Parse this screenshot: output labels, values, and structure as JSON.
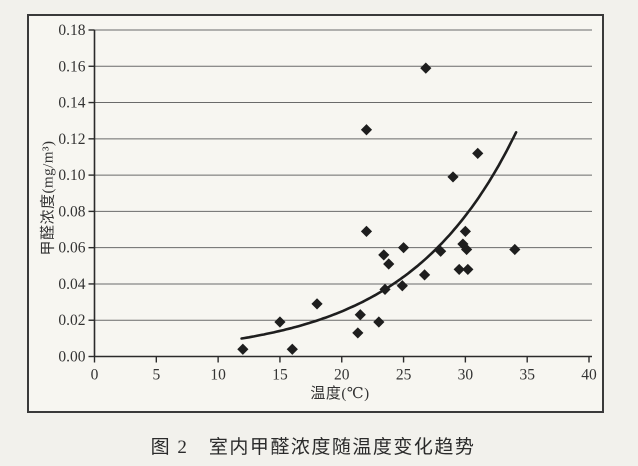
{
  "page": {
    "background": "#f2f1ec",
    "paper": "#f7f6f1",
    "frame_color": "#3a3a3a"
  },
  "figure": {
    "caption": "图 2　室内甲醛浓度随温度变化趋势"
  },
  "chart_data": {
    "type": "scatter",
    "title": "",
    "xlabel": "温度(℃)",
    "ylabel": "甲醛浓度(mg/m³)",
    "xlim": [
      0,
      40
    ],
    "ylim": [
      0,
      0.18
    ],
    "x_ticks": [
      "0",
      "5",
      "10",
      "15",
      "20",
      "25",
      "30",
      "35",
      "40"
    ],
    "y_ticks": [
      "0.00",
      "0.02",
      "0.04",
      "0.06",
      "0.08",
      "0.10",
      "0.12",
      "0.14",
      "0.16",
      "0.18"
    ],
    "grid": "horizontal-only",
    "legend": "none",
    "marker": "diamond",
    "points": [
      [
        12,
        0.004
      ],
      [
        15,
        0.019
      ],
      [
        16,
        0.004
      ],
      [
        18,
        0.029
      ],
      [
        21.3,
        0.013
      ],
      [
        21.5,
        0.023
      ],
      [
        22,
        0.069
      ],
      [
        22,
        0.125
      ],
      [
        23,
        0.019
      ],
      [
        23.4,
        0.056
      ],
      [
        23.5,
        0.037
      ],
      [
        23.8,
        0.051
      ],
      [
        24.9,
        0.039
      ],
      [
        25,
        0.06
      ],
      [
        26.7,
        0.045
      ],
      [
        26.8,
        0.159
      ],
      [
        28,
        0.058
      ],
      [
        29,
        0.099
      ],
      [
        29.5,
        0.048
      ],
      [
        29.8,
        0.062
      ],
      [
        30,
        0.069
      ],
      [
        30.1,
        0.059
      ],
      [
        30.2,
        0.048
      ],
      [
        31,
        0.112
      ],
      [
        34,
        0.059
      ]
    ],
    "trendline": {
      "type": "exponential",
      "a": 0.00256,
      "b": 0.1137,
      "x_start": 11.9,
      "x_end": 34.1
    },
    "colors": {
      "ink": "#1e1e1e",
      "axis": "#2b2b2b",
      "grid": "#6a6a6a",
      "text": "#333333"
    }
  }
}
